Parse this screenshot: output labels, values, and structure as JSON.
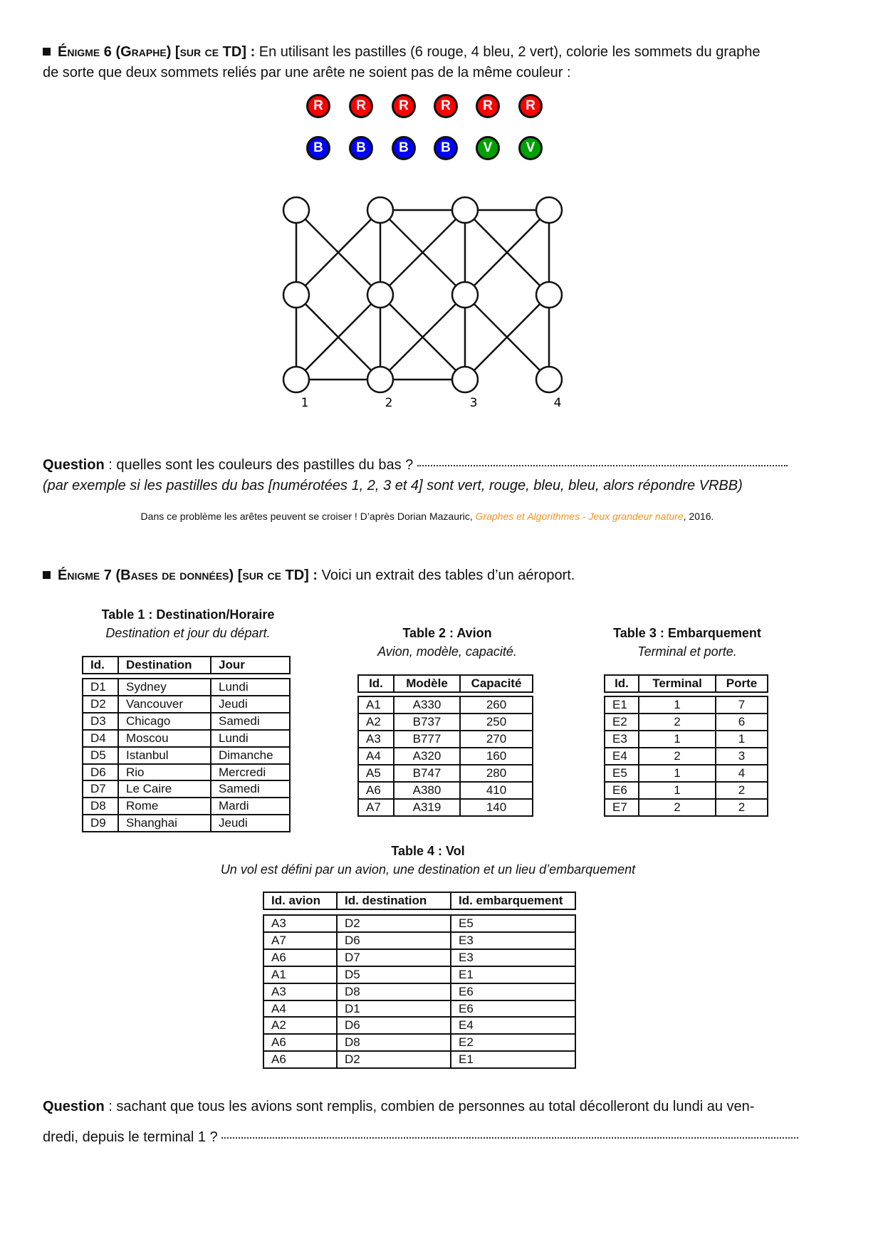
{
  "enigme6": {
    "heading": "Énigme 6 (Graphe) [sur ce TD] :",
    "text_line1": " En utilisant les pastilles (6 rouge, 4 bleu, 2 vert), colorie les sommets du graphe",
    "text_line2": "de sorte que deux sommets reliés par une arête ne soient pas de la même couleur :",
    "pastilles_row1": [
      {
        "label": "R",
        "color": "#ff0000"
      },
      {
        "label": "R",
        "color": "#ff0000"
      },
      {
        "label": "R",
        "color": "#ff0000"
      },
      {
        "label": "R",
        "color": "#ff0000"
      },
      {
        "label": "R",
        "color": "#ff0000"
      },
      {
        "label": "R",
        "color": "#ff0000"
      }
    ],
    "pastilles_row2": [
      {
        "label": "B",
        "color": "#0000ff"
      },
      {
        "label": "B",
        "color": "#0000ff"
      },
      {
        "label": "B",
        "color": "#0000ff"
      },
      {
        "label": "B",
        "color": "#0000ff"
      },
      {
        "label": "V",
        "color": "#00a000"
      },
      {
        "label": "V",
        "color": "#00a000"
      }
    ],
    "graph_labels": [
      "1",
      "2",
      "3",
      "4"
    ],
    "question_label": "Question",
    "question_text": " : quelles sont les couleurs des pastilles du bas ?",
    "example": "(par exemple si les pastilles du bas [numérotées 1, 2, 3 et 4] sont vert, rouge, bleu, bleu, alors répondre VRBB)",
    "source_prefix": "Dans ce problème les arêtes peuvent se croiser ! D’après Dorian Mazauric, ",
    "source_link": "Graphes et Algorithmes - Jeux grandeur nature",
    "source_suffix": ", 2016.",
    "link_color": "#f7931e"
  },
  "enigme7": {
    "heading": "Énigme 7 (Bases de données) [sur ce TD] :",
    "text": " Voici un extrait des tables d’un aéroport.",
    "table1": {
      "title": "Table 1 : Destination/Horaire",
      "subtitle": "Destination et jour du départ.",
      "headers": [
        "Id.",
        "Destination",
        "Jour"
      ],
      "rows": [
        [
          "D1",
          "Sydney",
          "Lundi"
        ],
        [
          "D2",
          "Vancouver",
          "Jeudi"
        ],
        [
          "D3",
          "Chicago",
          "Samedi"
        ],
        [
          "D4",
          "Moscou",
          "Lundi"
        ],
        [
          "D5",
          "Istanbul",
          "Dimanche"
        ],
        [
          "D6",
          "Rio",
          "Mercredi"
        ],
        [
          "D7",
          "Le Caire",
          "Samedi"
        ],
        [
          "D8",
          "Rome",
          "Mardi"
        ],
        [
          "D9",
          "Shanghai",
          "Jeudi"
        ]
      ]
    },
    "table2": {
      "title": "Table 2 : Avion",
      "subtitle": "Avion, modèle, capacité.",
      "headers": [
        "Id.",
        "Modèle",
        "Capacité"
      ],
      "rows": [
        [
          "A1",
          "A330",
          "260"
        ],
        [
          "A2",
          "B737",
          "250"
        ],
        [
          "A3",
          "B777",
          "270"
        ],
        [
          "A4",
          "A320",
          "160"
        ],
        [
          "A5",
          "B747",
          "280"
        ],
        [
          "A6",
          "A380",
          "410"
        ],
        [
          "A7",
          "A319",
          "140"
        ]
      ]
    },
    "table3": {
      "title": "Table 3 : Embarquement",
      "subtitle": "Terminal et porte.",
      "headers": [
        "Id.",
        "Terminal",
        "Porte"
      ],
      "rows": [
        [
          "E1",
          "1",
          "7"
        ],
        [
          "E2",
          "2",
          "6"
        ],
        [
          "E3",
          "1",
          "1"
        ],
        [
          "E4",
          "2",
          "3"
        ],
        [
          "E5",
          "1",
          "4"
        ],
        [
          "E6",
          "1",
          "2"
        ],
        [
          "E7",
          "2",
          "2"
        ]
      ]
    },
    "table4": {
      "title": "Table 4 : Vol",
      "subtitle": "Un vol est défini par un avion, une destination et un lieu d’embarquement",
      "headers": [
        "Id. avion",
        "Id. destination",
        "Id. embarquement"
      ],
      "rows": [
        [
          "A3",
          "D2",
          "E5"
        ],
        [
          "A7",
          "D6",
          "E3"
        ],
        [
          "A6",
          "D7",
          "E3"
        ],
        [
          "A1",
          "D5",
          "E1"
        ],
        [
          "A3",
          "D8",
          "E6"
        ],
        [
          "A4",
          "D1",
          "E6"
        ],
        [
          "A2",
          "D6",
          "E4"
        ],
        [
          "A6",
          "D8",
          "E2"
        ],
        [
          "A6",
          "D2",
          "E1"
        ]
      ]
    },
    "question_label": "Question",
    "question_line1": " : sachant que tous les avions sont remplis, combien de personnes au total décolleront du lundi au ven-",
    "question_line2": "dredi, depuis le terminal 1 ?"
  }
}
